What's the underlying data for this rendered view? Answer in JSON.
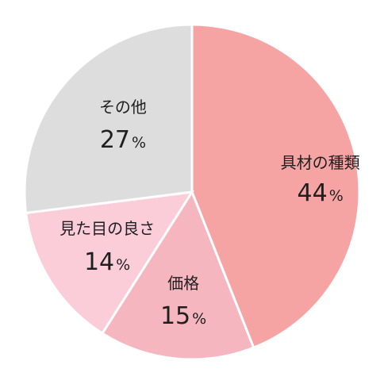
{
  "chart_data": {
    "type": "pie",
    "title": "",
    "start_angle_deg": 0,
    "direction": "clockwise",
    "slices": [
      {
        "label": "具材の種類",
        "value": 44,
        "value_label": "44",
        "unit": "%",
        "color": "#f6a3a3"
      },
      {
        "label": "価格",
        "value": 15,
        "value_label": "15",
        "unit": "%",
        "color": "#f6b6c0"
      },
      {
        "label": "見た目の良さ",
        "value": 14,
        "value_label": "14",
        "unit": "%",
        "color": "#facdd8"
      },
      {
        "label": "その他",
        "value": 27,
        "value_label": "27",
        "unit": "%",
        "color": "#dddddd"
      }
    ]
  }
}
